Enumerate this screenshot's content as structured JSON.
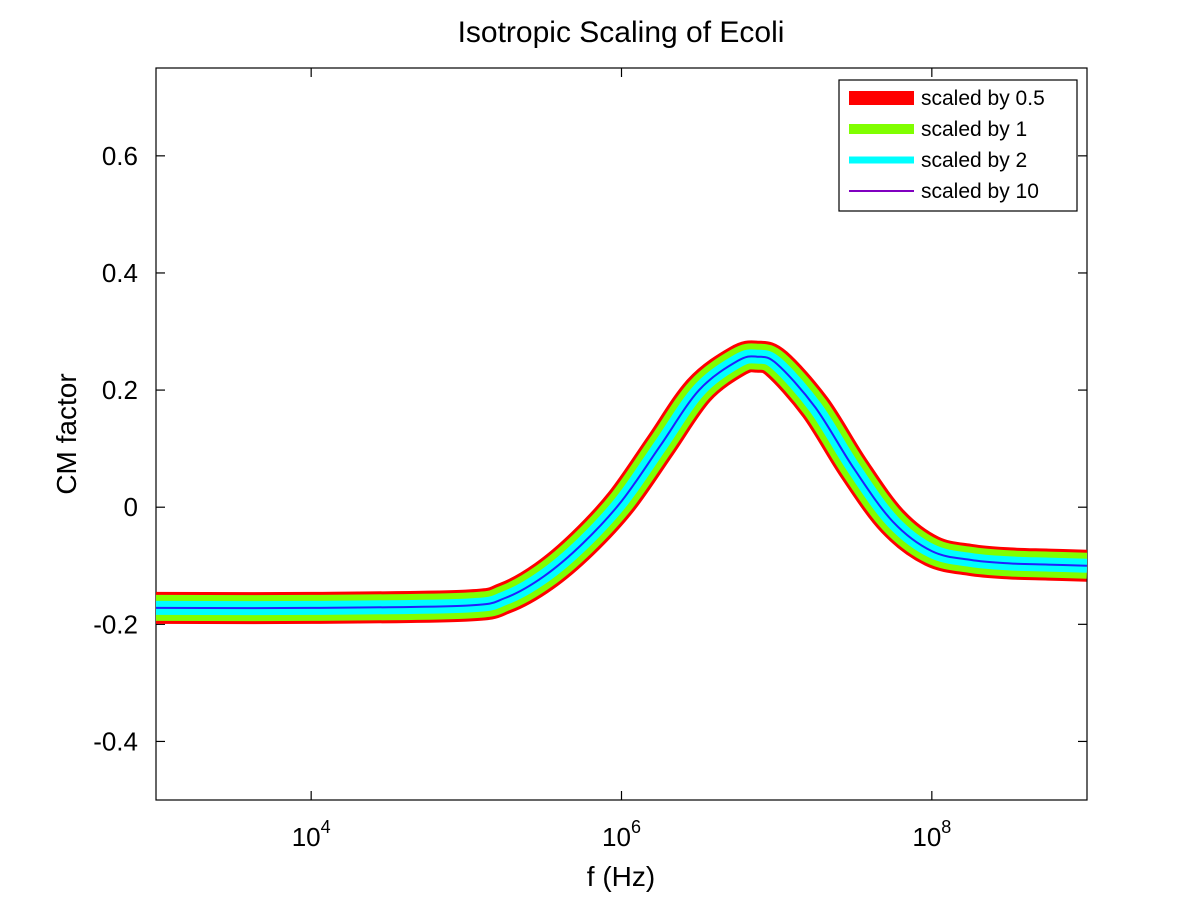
{
  "chart_data": {
    "type": "line",
    "title": "Isotropic Scaling of Ecoli",
    "xlabel": "f (Hz)",
    "ylabel": "CM factor",
    "xscale": "log",
    "xlim": [
      1000,
      1000000000
    ],
    "ylim": [
      -0.5,
      0.75
    ],
    "x_ticks": [
      {
        "value": 10000,
        "base": "10",
        "exp": "4"
      },
      {
        "value": 1000000,
        "base": "10",
        "exp": "6"
      },
      {
        "value": 100000000,
        "base": "10",
        "exp": "8"
      }
    ],
    "y_ticks": [
      {
        "value": -0.4,
        "label": "-0.4"
      },
      {
        "value": -0.2,
        "label": "-0.2"
      },
      {
        "value": 0,
        "label": "0"
      },
      {
        "value": 0.2,
        "label": "0.2"
      },
      {
        "value": 0.4,
        "label": "0.4"
      },
      {
        "value": 0.6,
        "label": "0.6"
      }
    ],
    "grid": false,
    "legend_position": "top-right",
    "x": [
      1000,
      10000,
      100000,
      177828,
      316228,
      562341,
      1000000,
      1778279,
      3162278,
      5623413,
      7500000,
      10000000,
      17782794,
      31622777,
      56234133,
      100000000,
      177827941,
      316227766,
      562341325,
      1000000000
    ],
    "series": [
      {
        "name": "scaled by 0.5",
        "color": "#ff0000",
        "values": [
          -0.172,
          -0.172,
          -0.168,
          -0.155,
          -0.118,
          -0.062,
          0.01,
          0.105,
          0.2,
          0.25,
          0.257,
          0.245,
          0.17,
          0.065,
          -0.025,
          -0.075,
          -0.09,
          -0.096,
          -0.098,
          -0.1
        ]
      },
      {
        "name": "scaled by 1",
        "color": "#80ff00",
        "values": [
          -0.172,
          -0.172,
          -0.168,
          -0.155,
          -0.118,
          -0.062,
          0.01,
          0.105,
          0.2,
          0.25,
          0.257,
          0.245,
          0.17,
          0.065,
          -0.025,
          -0.075,
          -0.09,
          -0.096,
          -0.098,
          -0.1
        ]
      },
      {
        "name": "scaled by 2",
        "color": "#00ffff",
        "values": [
          -0.172,
          -0.172,
          -0.168,
          -0.155,
          -0.118,
          -0.062,
          0.01,
          0.105,
          0.2,
          0.25,
          0.257,
          0.245,
          0.17,
          0.065,
          -0.025,
          -0.075,
          -0.09,
          -0.096,
          -0.098,
          -0.1
        ]
      },
      {
        "name": "scaled by 10",
        "color": "#8000c0",
        "values": [
          -0.172,
          -0.172,
          -0.168,
          -0.155,
          -0.118,
          -0.062,
          0.01,
          0.105,
          0.2,
          0.25,
          0.257,
          0.245,
          0.17,
          0.065,
          -0.025,
          -0.075,
          -0.09,
          -0.096,
          -0.098,
          -0.1
        ]
      }
    ],
    "center_line_color": "#2020ff"
  }
}
